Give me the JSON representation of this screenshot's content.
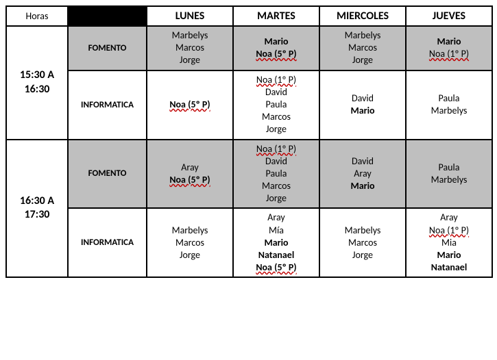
{
  "header": {
    "hours": "Horas",
    "days": [
      "LUNES",
      "MARTES",
      "MIERCOLES",
      "JUEVES"
    ]
  },
  "categories": {
    "fomento": "FOMENTO",
    "informatica": "INFORMATICA"
  },
  "timeBlocks": [
    {
      "range": "15:30 A 16:30",
      "rows": [
        {
          "category": "fomento",
          "shade": "gray",
          "cells": [
            [
              {
                "t": "Marbelys"
              },
              {
                "t": "Marcos"
              },
              {
                "t": "Jorge"
              }
            ],
            [
              {
                "t": "Mario",
                "b": true
              },
              {
                "t": "Noa (5º P)",
                "b": true,
                "w": true
              }
            ],
            [
              {
                "t": "Marbelys"
              },
              {
                "t": "Marcos"
              },
              {
                "t": "Jorge"
              }
            ],
            [
              {
                "t": "Mario",
                "b": true
              },
              {
                "t": "Noa (1º P)",
                "w": true
              }
            ]
          ]
        },
        {
          "category": "informatica",
          "shade": "white",
          "cells": [
            [
              {
                "t": "Noa (5º P)",
                "b": true,
                "w": true
              }
            ],
            [
              {
                "t": "Noa (1º P)",
                "w": true
              },
              {
                "t": "David"
              },
              {
                "t": "Paula"
              },
              {
                "t": "Marcos"
              },
              {
                "t": "Jorge"
              }
            ],
            [
              {
                "t": "David"
              },
              {
                "t": "Mario",
                "b": true
              }
            ],
            [
              {
                "t": "Paula"
              },
              {
                "t": "Marbelys"
              }
            ]
          ]
        }
      ]
    },
    {
      "range": "16:30 A 17:30",
      "rows": [
        {
          "category": "fomento",
          "shade": "gray",
          "cells": [
            [
              {
                "t": "Aray"
              },
              {
                "t": "Noa (5º P)",
                "b": true,
                "w": true
              }
            ],
            [
              {
                "t": "Noa (1º P)",
                "w": true
              },
              {
                "t": "David"
              },
              {
                "t": "Paula"
              },
              {
                "t": "Marcos"
              },
              {
                "t": "Jorge"
              }
            ],
            [
              {
                "t": "David"
              },
              {
                "t": "Aray"
              },
              {
                "t": "Mario",
                "b": true
              }
            ],
            [
              {
                "t": "Paula"
              },
              {
                "t": "Marbelys"
              }
            ]
          ]
        },
        {
          "category": "informatica",
          "shade": "white",
          "cells": [
            [
              {
                "t": "Marbelys"
              },
              {
                "t": "Marcos"
              },
              {
                "t": "Jorge"
              }
            ],
            [
              {
                "t": "Aray"
              },
              {
                "t": "Mía"
              },
              {
                "t": "Mario",
                "b": true
              },
              {
                "t": "Natanael",
                "b": true
              },
              {
                "t": "Noa (5º P)",
                "b": true,
                "w": true
              }
            ],
            [
              {
                "t": "Marbelys"
              },
              {
                "t": "Marcos"
              },
              {
                "t": "Jorge"
              }
            ],
            [
              {
                "t": "Aray"
              },
              {
                "t": "Noa (1º P)",
                "w": true
              },
              {
                "t": "Mia"
              },
              {
                "t": "Mario",
                "b": true
              },
              {
                "t": "Natanael",
                "b": true
              }
            ]
          ]
        }
      ]
    }
  ]
}
